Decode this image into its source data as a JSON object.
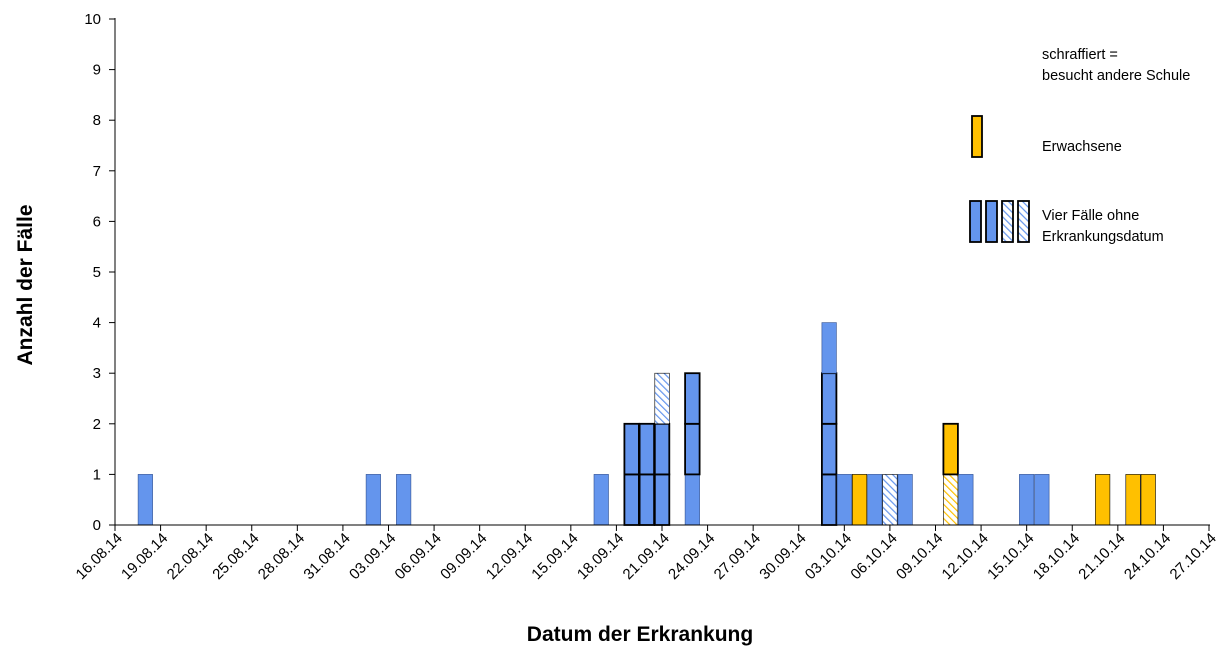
{
  "chart_data": {
    "type": "bar",
    "xlabel": "Datum der Erkrankung",
    "ylabel": "Anzahl der Fälle",
    "ylim": [
      0,
      10
    ],
    "yticks": [
      0,
      1,
      2,
      3,
      4,
      5,
      6,
      7,
      8,
      9,
      10
    ],
    "grid": false,
    "x_start": "16.08.14",
    "x_end": "27.10.14",
    "tick_dates": [
      "16.08.14",
      "19.08.14",
      "22.08.14",
      "25.08.14",
      "28.08.14",
      "31.08.14",
      "03.09.14",
      "06.09.14",
      "09.09.14",
      "12.09.14",
      "15.09.14",
      "18.09.14",
      "21.09.14",
      "24.09.14",
      "27.09.14",
      "30.09.14",
      "03.10.14",
      "06.10.14",
      "09.10.14",
      "12.10.14",
      "15.10.14",
      "18.10.14",
      "21.10.14",
      "24.10.14",
      "27.10.14"
    ],
    "bars": [
      {
        "date": "18.08.14",
        "cases": [
          {
            "group": "Schüler"
          }
        ]
      },
      {
        "date": "02.09.14",
        "cases": [
          {
            "group": "Schüler"
          }
        ]
      },
      {
        "date": "04.09.14",
        "cases": [
          {
            "group": "Schüler"
          }
        ]
      },
      {
        "date": "17.09.14",
        "cases": [
          {
            "group": "Schüler"
          }
        ]
      },
      {
        "date": "19.09.14",
        "cases": [
          {
            "group": "Schüler",
            "outlined": true
          },
          {
            "group": "Schüler",
            "outlined": true
          }
        ]
      },
      {
        "date": "20.09.14",
        "cases": [
          {
            "group": "Schüler",
            "outlined": true
          },
          {
            "group": "Schüler",
            "outlined": true
          }
        ]
      },
      {
        "date": "21.09.14",
        "cases": [
          {
            "group": "Schüler",
            "outlined": true
          },
          {
            "group": "Schüler",
            "outlined": true
          },
          {
            "group": "Schüler",
            "hatched": true
          }
        ]
      },
      {
        "date": "23.09.14",
        "cases": [
          {
            "group": "Schüler"
          },
          {
            "group": "Schüler",
            "outlined": true
          },
          {
            "group": "Schüler",
            "outlined": true
          }
        ]
      },
      {
        "date": "02.10.14",
        "cases": [
          {
            "group": "Schüler",
            "outlined": true
          },
          {
            "group": "Schüler",
            "outlined": true
          },
          {
            "group": "Schüler",
            "outlined": true
          },
          {
            "group": "Schüler"
          }
        ]
      },
      {
        "date": "03.10.14",
        "cases": [
          {
            "group": "Schüler"
          }
        ]
      },
      {
        "date": "04.10.14",
        "cases": [
          {
            "group": "Erwachsene"
          }
        ]
      },
      {
        "date": "05.10.14",
        "cases": [
          {
            "group": "Schüler"
          }
        ]
      },
      {
        "date": "06.10.14",
        "cases": [
          {
            "group": "Schüler",
            "hatched": true
          }
        ]
      },
      {
        "date": "07.10.14",
        "cases": [
          {
            "group": "Schüler"
          }
        ]
      },
      {
        "date": "10.10.14",
        "cases": [
          {
            "group": "Erwachsene",
            "hatched": true
          },
          {
            "group": "Erwachsene",
            "outlined": true
          }
        ]
      },
      {
        "date": "11.10.14",
        "cases": [
          {
            "group": "Schüler"
          }
        ]
      },
      {
        "date": "15.10.14",
        "cases": [
          {
            "group": "Schüler"
          }
        ]
      },
      {
        "date": "16.10.14",
        "cases": [
          {
            "group": "Schüler"
          }
        ]
      },
      {
        "date": "20.10.14",
        "cases": [
          {
            "group": "Erwachsene"
          }
        ]
      },
      {
        "date": "22.10.14",
        "cases": [
          {
            "group": "Erwachsene"
          }
        ]
      },
      {
        "date": "23.10.14",
        "cases": [
          {
            "group": "Erwachsene"
          }
        ]
      }
    ],
    "legend": {
      "placement": "top-right",
      "hatch_note_line1": "schraffiert =",
      "hatch_note_line2": "besucht andere Schule",
      "adults_label": "Erwachsene",
      "undated_line1": "Vier Fälle ohne",
      "undated_line2": "Erkrankungsdatum",
      "undated_cases": [
        {
          "hatched": false
        },
        {
          "hatched": false
        },
        {
          "hatched": true
        },
        {
          "hatched": true
        }
      ]
    },
    "colors": {
      "Schüler": "#6495ED",
      "Erwachsene": "#FFC000",
      "outline": "#000000",
      "hatch_bg": "#ffffff",
      "axis": "#000000"
    }
  }
}
